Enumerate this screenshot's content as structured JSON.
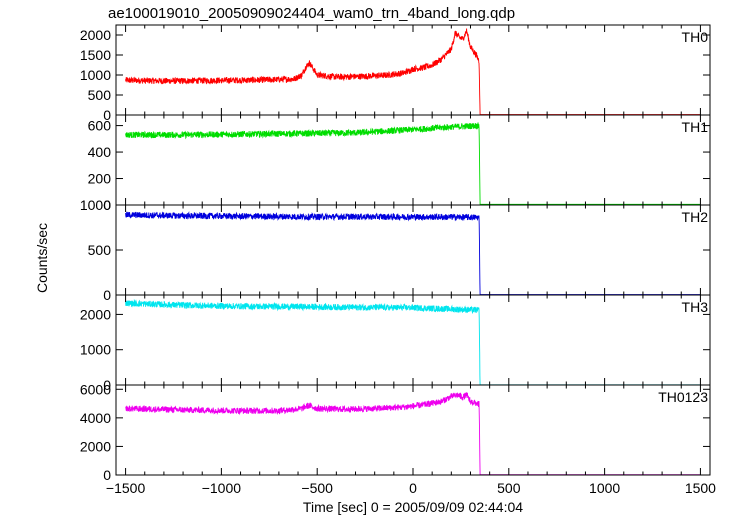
{
  "chart_data": {
    "type": "line",
    "title": "ae100019010_20050909024404_wam0_trn_4band_long.qdp",
    "xlabel": "Time [sec] 0 = 2005/09/09 02:44:04",
    "ylabel": "Counts/sec",
    "xlim": [
      -1550,
      1550
    ],
    "x_ticks": [
      -1500,
      -1000,
      -500,
      0,
      500,
      1000,
      1500
    ],
    "x_tick_labels": [
      "−1500",
      "−1000",
      "−500",
      "0",
      "500",
      "1000",
      "1500"
    ],
    "grid": false,
    "legend": "none",
    "panels": [
      {
        "name": "TH0",
        "color": "#ff0000",
        "ylim": [
          0,
          2250
        ],
        "yticks": [
          0,
          500,
          1000,
          1500,
          2000
        ],
        "ytick_labels": [
          "0",
          "500",
          "1000",
          "1500",
          "2000"
        ],
        "x": [
          -1500,
          -1300,
          -1100,
          -900,
          -750,
          -620,
          -580,
          -560,
          -540,
          -500,
          -400,
          -300,
          -150,
          -50,
          0,
          50,
          100,
          150,
          200,
          220,
          240,
          260,
          280,
          300,
          330,
          345,
          350,
          1500
        ],
        "y": [
          870,
          850,
          860,
          870,
          880,
          900,
          1000,
          1200,
          1300,
          1000,
          950,
          960,
          990,
          1050,
          1150,
          1180,
          1250,
          1400,
          1650,
          2050,
          1950,
          1900,
          2100,
          1700,
          1500,
          1350,
          10,
          10
        ]
      },
      {
        "name": "TH1",
        "color": "#00dd00",
        "ylim": [
          0,
          680
        ],
        "yticks": [
          0,
          200,
          400,
          600
        ],
        "ytick_labels": [
          "0",
          "200",
          "400",
          "600"
        ],
        "x": [
          -1500,
          -1200,
          -900,
          -600,
          -300,
          0,
          200,
          345,
          350,
          1500
        ],
        "y": [
          530,
          530,
          535,
          540,
          545,
          570,
          590,
          600,
          5,
          5
        ]
      },
      {
        "name": "TH2",
        "color": "#0000dd",
        "ylim": [
          0,
          1000
        ],
        "yticks": [
          0,
          500,
          1000
        ],
        "ytick_labels": [
          "0",
          "500",
          "1000"
        ],
        "x": [
          -1500,
          -1200,
          -900,
          -600,
          -300,
          0,
          200,
          345,
          350,
          1500
        ],
        "y": [
          890,
          880,
          875,
          870,
          870,
          868,
          866,
          862,
          5,
          5
        ]
      },
      {
        "name": "TH3",
        "color": "#00e5ee",
        "ylim": [
          0,
          2550
        ],
        "yticks": [
          0,
          1000,
          2000
        ],
        "ytick_labels": [
          "0",
          "1000",
          "2000"
        ],
        "x": [
          -1500,
          -1200,
          -900,
          -600,
          -300,
          0,
          200,
          345,
          350,
          1500
        ],
        "y": [
          2320,
          2260,
          2230,
          2220,
          2200,
          2190,
          2150,
          2120,
          5,
          5
        ]
      },
      {
        "name": "TH0123",
        "color": "#ee00ee",
        "ylim": [
          0,
          6300
        ],
        "yticks": [
          0,
          2000,
          4000,
          6000
        ],
        "ytick_labels": [
          "0",
          "2000",
          "4000",
          "6000"
        ],
        "x": [
          -1500,
          -1200,
          -900,
          -700,
          -580,
          -560,
          -540,
          -500,
          -350,
          -200,
          -50,
          50,
          150,
          200,
          230,
          260,
          280,
          300,
          345,
          350,
          1500
        ],
        "y": [
          4650,
          4560,
          4500,
          4500,
          4650,
          4800,
          4850,
          4650,
          4600,
          4650,
          4750,
          4900,
          5150,
          5500,
          5600,
          5450,
          5600,
          5150,
          4950,
          20,
          20
        ]
      }
    ]
  }
}
